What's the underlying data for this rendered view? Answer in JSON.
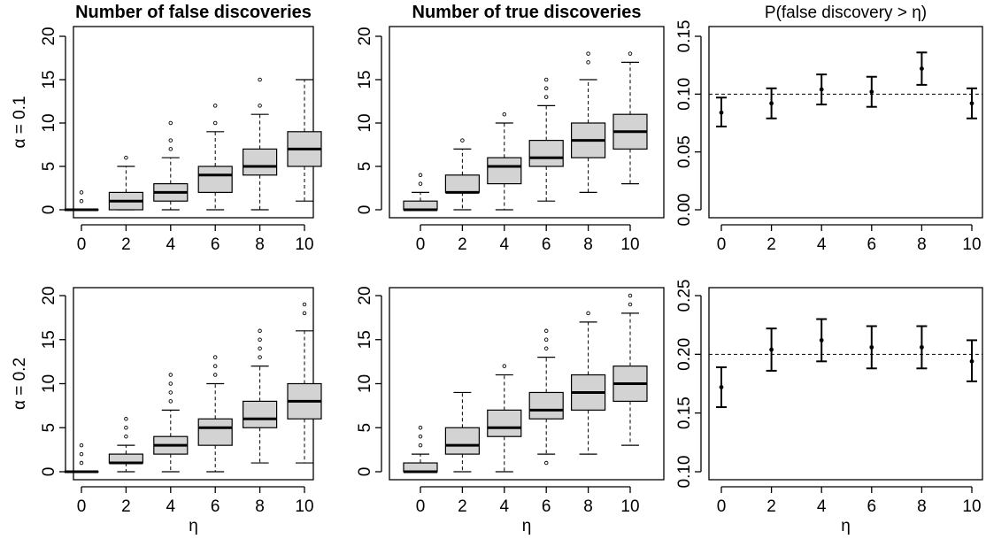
{
  "chart_data": [
    {
      "type": "boxplot",
      "title": "Number of false discoveries",
      "row_label": "α = 0.1",
      "xlabel": "",
      "x": [
        0,
        2,
        4,
        6,
        8,
        10
      ],
      "x_ticks": [
        "0",
        "2",
        "4",
        "6",
        "8",
        "10"
      ],
      "ylim": [
        0,
        20
      ],
      "y_ticks": [
        "0",
        "5",
        "10",
        "15",
        "20"
      ],
      "boxes": [
        {
          "x": 0,
          "whisker_low": 0,
          "q1": 0,
          "median": 0,
          "q3": 0,
          "whisker_high": 0,
          "outliers": [
            1,
            2
          ]
        },
        {
          "x": 2,
          "whisker_low": 0,
          "q1": 0,
          "median": 1,
          "q3": 2,
          "whisker_high": 5,
          "outliers": [
            6
          ]
        },
        {
          "x": 4,
          "whisker_low": 0,
          "q1": 1,
          "median": 2,
          "q3": 3,
          "whisker_high": 6,
          "outliers": [
            7,
            8,
            10
          ]
        },
        {
          "x": 6,
          "whisker_low": 0,
          "q1": 2,
          "median": 4,
          "q3": 5,
          "whisker_high": 9,
          "outliers": [
            10,
            12
          ]
        },
        {
          "x": 8,
          "whisker_low": 0,
          "q1": 4,
          "median": 5,
          "q3": 7,
          "whisker_high": 11,
          "outliers": [
            12,
            15
          ]
        },
        {
          "x": 10,
          "whisker_low": 1,
          "q1": 5,
          "median": 7,
          "q3": 9,
          "whisker_high": 15,
          "outliers": []
        }
      ]
    },
    {
      "type": "boxplot",
      "title": "Number of true discoveries",
      "xlabel": "",
      "x": [
        0,
        2,
        4,
        6,
        8,
        10
      ],
      "x_ticks": [
        "0",
        "2",
        "4",
        "6",
        "8",
        "10"
      ],
      "ylim": [
        0,
        20
      ],
      "y_ticks": [
        "0",
        "5",
        "10",
        "15",
        "20"
      ],
      "boxes": [
        {
          "x": 0,
          "whisker_low": 0,
          "q1": 0,
          "median": 0,
          "q3": 1,
          "whisker_high": 2,
          "outliers": [
            3,
            4
          ]
        },
        {
          "x": 2,
          "whisker_low": 0,
          "q1": 2,
          "median": 2,
          "q3": 4,
          "whisker_high": 7,
          "outliers": [
            8
          ]
        },
        {
          "x": 4,
          "whisker_low": 0,
          "q1": 3,
          "median": 5,
          "q3": 6,
          "whisker_high": 10,
          "outliers": [
            11
          ]
        },
        {
          "x": 6,
          "whisker_low": 1,
          "q1": 5,
          "median": 6,
          "q3": 8,
          "whisker_high": 12,
          "outliers": [
            13,
            14,
            15
          ]
        },
        {
          "x": 8,
          "whisker_low": 2,
          "q1": 6,
          "median": 8,
          "q3": 10,
          "whisker_high": 15,
          "outliers": [
            17,
            18
          ]
        },
        {
          "x": 10,
          "whisker_low": 3,
          "q1": 7,
          "median": 9,
          "q3": 11,
          "whisker_high": 17,
          "outliers": [
            18
          ]
        }
      ]
    },
    {
      "type": "errorbar",
      "title": "P(false discovery > η)",
      "xlabel": "",
      "x": [
        0,
        2,
        4,
        6,
        8,
        10
      ],
      "x_ticks": [
        "0",
        "2",
        "4",
        "6",
        "8",
        "10"
      ],
      "ylim": [
        0,
        0.15
      ],
      "y_ticks": [
        "0.00",
        "0.05",
        "0.10",
        "0.15"
      ],
      "reference_line": 0.1,
      "points": [
        {
          "x": 0,
          "y": 0.084,
          "low": 0.072,
          "high": 0.097
        },
        {
          "x": 2,
          "y": 0.092,
          "low": 0.079,
          "high": 0.105
        },
        {
          "x": 4,
          "y": 0.104,
          "low": 0.091,
          "high": 0.117
        },
        {
          "x": 6,
          "y": 0.102,
          "low": 0.089,
          "high": 0.115
        },
        {
          "x": 8,
          "y": 0.122,
          "low": 0.108,
          "high": 0.136
        },
        {
          "x": 10,
          "y": 0.092,
          "low": 0.079,
          "high": 0.105
        }
      ]
    },
    {
      "type": "boxplot",
      "title": "",
      "row_label": "α = 0.2",
      "xlabel": "η",
      "x": [
        0,
        2,
        4,
        6,
        8,
        10
      ],
      "x_ticks": [
        "0",
        "2",
        "4",
        "6",
        "8",
        "10"
      ],
      "ylim": [
        0,
        20
      ],
      "y_ticks": [
        "0",
        "5",
        "10",
        "15",
        "20"
      ],
      "boxes": [
        {
          "x": 0,
          "whisker_low": 0,
          "q1": 0,
          "median": 0,
          "q3": 0,
          "whisker_high": 0,
          "outliers": [
            1,
            2,
            3
          ]
        },
        {
          "x": 2,
          "whisker_low": 0,
          "q1": 1,
          "median": 1,
          "q3": 2,
          "whisker_high": 3,
          "outliers": [
            4,
            5,
            6
          ]
        },
        {
          "x": 4,
          "whisker_low": 0,
          "q1": 2,
          "median": 3,
          "q3": 4,
          "whisker_high": 7,
          "outliers": [
            8,
            9,
            10,
            11
          ]
        },
        {
          "x": 6,
          "whisker_low": 0,
          "q1": 3,
          "median": 5,
          "q3": 6,
          "whisker_high": 10,
          "outliers": [
            11,
            12,
            13
          ]
        },
        {
          "x": 8,
          "whisker_low": 1,
          "q1": 5,
          "median": 6,
          "q3": 8,
          "whisker_high": 12,
          "outliers": [
            13,
            14,
            15,
            16
          ]
        },
        {
          "x": 10,
          "whisker_low": 1,
          "q1": 6,
          "median": 8,
          "q3": 10,
          "whisker_high": 16,
          "outliers": [
            18,
            19
          ]
        }
      ]
    },
    {
      "type": "boxplot",
      "title": "",
      "xlabel": "η",
      "x": [
        0,
        2,
        4,
        6,
        8,
        10
      ],
      "x_ticks": [
        "0",
        "2",
        "4",
        "6",
        "8",
        "10"
      ],
      "ylim": [
        0,
        20
      ],
      "y_ticks": [
        "0",
        "5",
        "10",
        "15",
        "20"
      ],
      "boxes": [
        {
          "x": 0,
          "whisker_low": 0,
          "q1": 0,
          "median": 0,
          "q3": 1,
          "whisker_high": 2,
          "outliers": [
            3,
            4,
            5
          ]
        },
        {
          "x": 2,
          "whisker_low": 0,
          "q1": 2,
          "median": 3,
          "q3": 5,
          "whisker_high": 9,
          "outliers": []
        },
        {
          "x": 4,
          "whisker_low": 0,
          "q1": 4,
          "median": 5,
          "q3": 7,
          "whisker_high": 11,
          "outliers": [
            12
          ]
        },
        {
          "x": 6,
          "whisker_low": 2,
          "q1": 6,
          "median": 7,
          "q3": 9,
          "whisker_high": 13,
          "outliers": [
            1,
            14,
            15,
            16
          ]
        },
        {
          "x": 8,
          "whisker_low": 2,
          "q1": 7,
          "median": 9,
          "q3": 11,
          "whisker_high": 17,
          "outliers": [
            18
          ]
        },
        {
          "x": 10,
          "whisker_low": 3,
          "q1": 8,
          "median": 10,
          "q3": 12,
          "whisker_high": 18,
          "outliers": [
            19,
            20
          ]
        }
      ]
    },
    {
      "type": "errorbar",
      "title": "",
      "xlabel": "η",
      "x": [
        0,
        2,
        4,
        6,
        8,
        10
      ],
      "x_ticks": [
        "0",
        "2",
        "4",
        "6",
        "8",
        "10"
      ],
      "ylim": [
        0.1,
        0.25
      ],
      "y_ticks": [
        "0.10",
        "0.15",
        "0.20",
        "0.25"
      ],
      "reference_line": 0.2,
      "points": [
        {
          "x": 0,
          "y": 0.172,
          "low": 0.155,
          "high": 0.189
        },
        {
          "x": 2,
          "y": 0.204,
          "low": 0.186,
          "high": 0.222
        },
        {
          "x": 4,
          "y": 0.212,
          "low": 0.194,
          "high": 0.23
        },
        {
          "x": 6,
          "y": 0.206,
          "low": 0.188,
          "high": 0.224
        },
        {
          "x": 8,
          "y": 0.206,
          "low": 0.188,
          "high": 0.224
        },
        {
          "x": 10,
          "y": 0.194,
          "low": 0.177,
          "high": 0.212
        }
      ]
    }
  ]
}
